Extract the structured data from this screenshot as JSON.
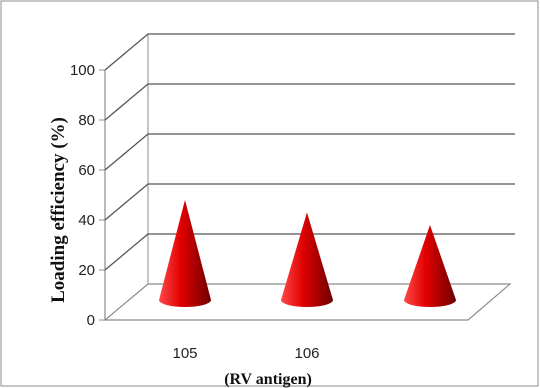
{
  "chart_data": {
    "type": "bar",
    "bar_shape": "cone",
    "projection": "3d",
    "categories": [
      "105",
      "106",
      ""
    ],
    "values": [
      40,
      35,
      30
    ],
    "ylabel": "Loading efficiency (%)",
    "xlabel": "(RV antigen)",
    "ylim": [
      0,
      100
    ],
    "yticks": [
      0,
      20,
      40,
      60,
      80,
      100
    ],
    "grid": true,
    "legend": "none",
    "colors": {
      "cone_light": "#ff4a4a",
      "cone_base": "#e00000",
      "cone_dark": "#6e0000",
      "grid": "#555555",
      "frame": "#8c8c8c"
    }
  }
}
